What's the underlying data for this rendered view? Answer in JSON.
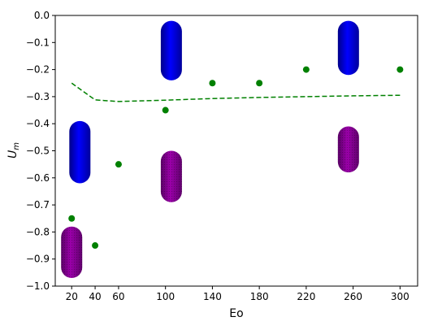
{
  "chart_data": {
    "type": "scatter",
    "xlabel": "Eo",
    "ylabel_main": "U",
    "ylabel_sub": "m",
    "xlim": [
      6,
      315
    ],
    "ylim": [
      -1.0,
      0.0
    ],
    "x_ticks": [
      20,
      40,
      60,
      100,
      140,
      180,
      220,
      260,
      300
    ],
    "y_ticks": [
      0.0,
      -0.1,
      -0.2,
      -0.3,
      -0.4,
      -0.5,
      -0.6,
      -0.7,
      -0.8,
      -0.9,
      -1.0
    ],
    "grid": false,
    "legend": "none",
    "series": [
      {
        "kind": "points",
        "color": "#008000",
        "x": [
          20,
          40,
          60,
          100,
          140,
          180,
          220,
          300
        ],
        "y": [
          -0.75,
          -0.85,
          -0.55,
          -0.35,
          -0.25,
          -0.25,
          -0.2,
          -0.2
        ]
      },
      {
        "kind": "dashed-line",
        "color": "#008000",
        "x": [
          20,
          40,
          60,
          100,
          140,
          180,
          220,
          260,
          300
        ],
        "y": [
          -0.25,
          -0.312,
          -0.318,
          -0.313,
          -0.307,
          -0.303,
          -0.3,
          -0.297,
          -0.295
        ]
      }
    ],
    "bubble_images": [
      {
        "color": "blue",
        "x_center": 27,
        "y_top": -0.39,
        "y_bottom": -0.62
      },
      {
        "color": "purple",
        "x_center": 20,
        "y_top": -0.78,
        "y_bottom": -0.97
      },
      {
        "color": "blue",
        "x_center": 105,
        "y_top": -0.02,
        "y_bottom": -0.24
      },
      {
        "color": "purple",
        "x_center": 105,
        "y_top": -0.5,
        "y_bottom": -0.69
      },
      {
        "color": "blue",
        "x_center": 256,
        "y_top": -0.02,
        "y_bottom": -0.22
      },
      {
        "color": "purple",
        "x_center": 256,
        "y_top": -0.41,
        "y_bottom": -0.58
      }
    ]
  }
}
